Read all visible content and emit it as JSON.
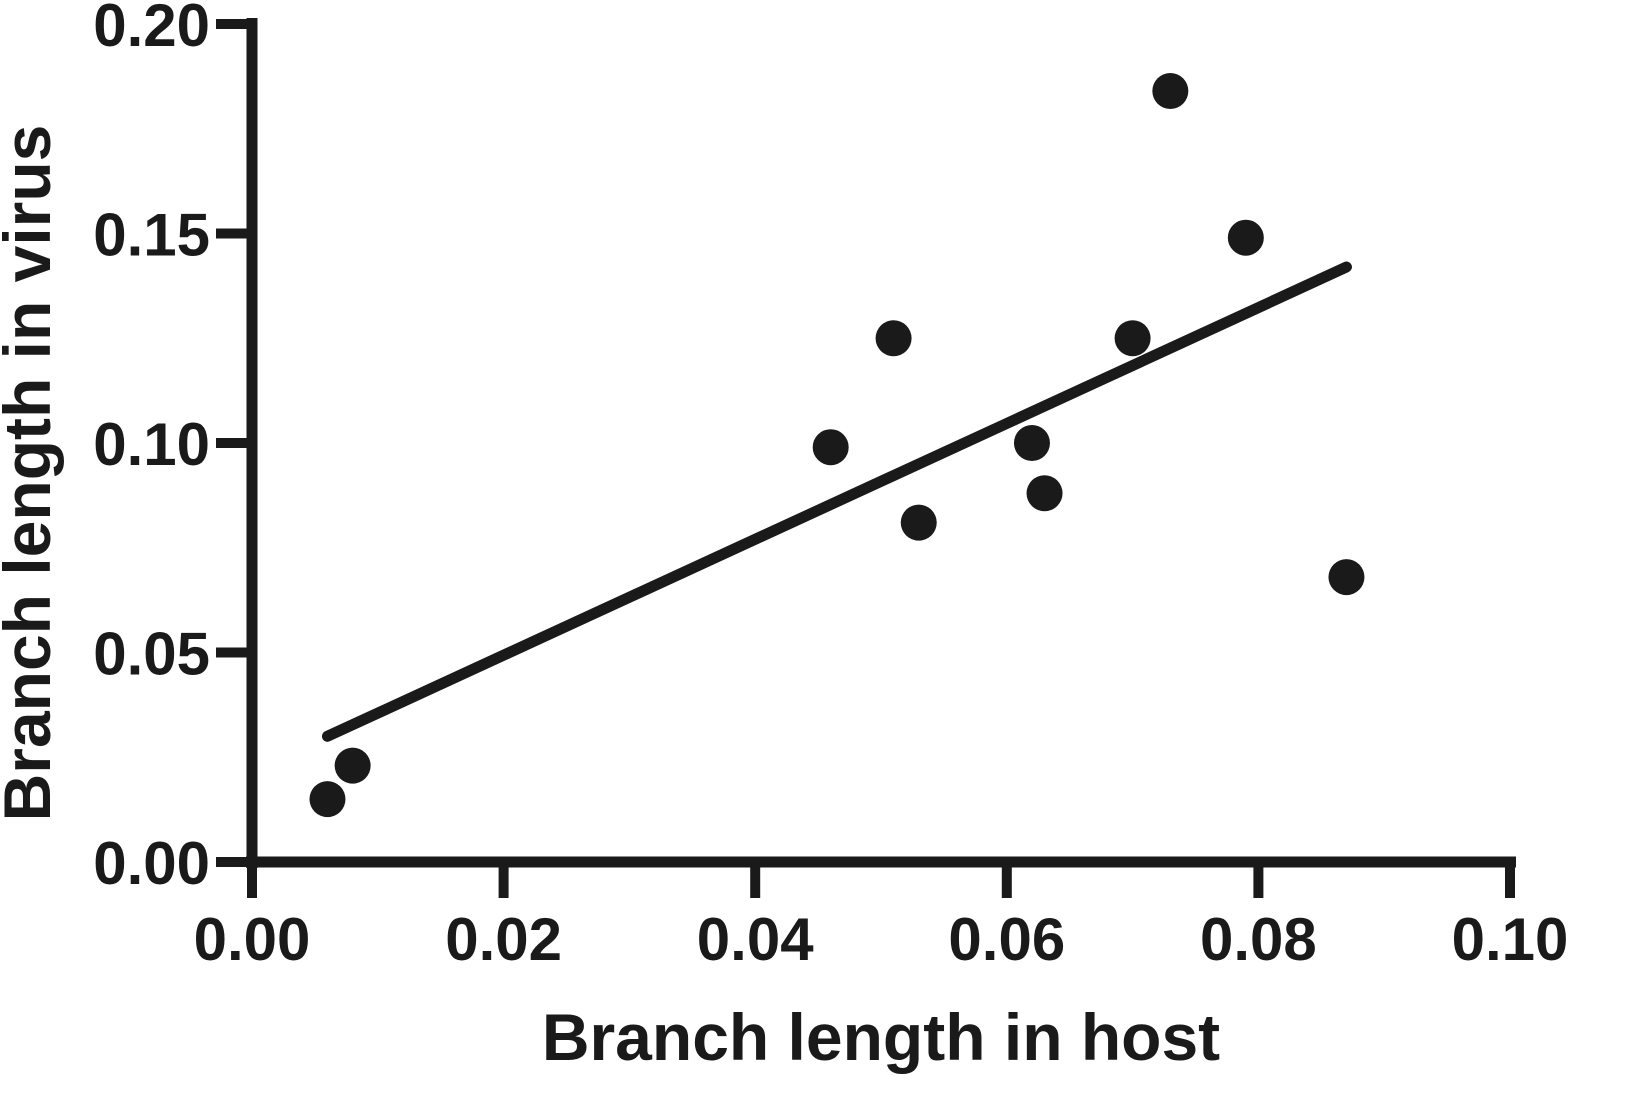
{
  "chart_data": {
    "type": "scatter",
    "title": "",
    "xlabel": "Branch length in host",
    "ylabel": "Branch length in virus",
    "xlim": [
      0,
      0.1
    ],
    "ylim": [
      0,
      0.2
    ],
    "x_ticks": [
      "0.00",
      "0.02",
      "0.04",
      "0.06",
      "0.08",
      "0.10"
    ],
    "y_ticks": [
      "0.00",
      "0.05",
      "0.10",
      "0.15",
      "0.20"
    ],
    "grid": false,
    "series": [
      {
        "points": [
          {
            "x": 0.006,
            "y": 0.015
          },
          {
            "x": 0.008,
            "y": 0.023
          },
          {
            "x": 0.046,
            "y": 0.099
          },
          {
            "x": 0.051,
            "y": 0.125
          },
          {
            "x": 0.053,
            "y": 0.081
          },
          {
            "x": 0.062,
            "y": 0.1
          },
          {
            "x": 0.063,
            "y": 0.088
          },
          {
            "x": 0.07,
            "y": 0.125
          },
          {
            "x": 0.073,
            "y": 0.184
          },
          {
            "x": 0.079,
            "y": 0.149
          },
          {
            "x": 0.087,
            "y": 0.068
          }
        ]
      }
    ],
    "regression_line": {
      "x1": 0.006,
      "y1": 0.03,
      "x2": 0.087,
      "y2": 0.142
    },
    "colors": {
      "ink": "#1a1a1a",
      "background": "#ffffff"
    }
  }
}
